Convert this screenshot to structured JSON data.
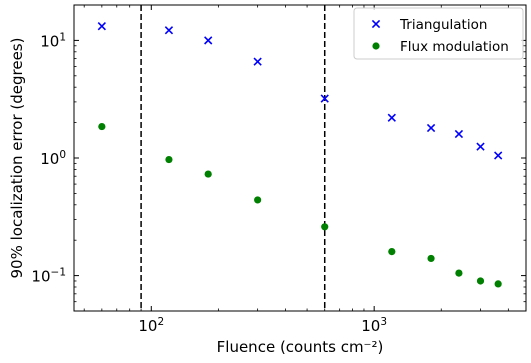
{
  "chart_data": {
    "type": "scatter",
    "xlabel": "Fluence (counts cm⁻²)",
    "ylabel": "90% localization error (degrees)",
    "x_scale": "log",
    "y_scale": "log",
    "xlim": [
      45,
      4800
    ],
    "ylim": [
      0.05,
      20
    ],
    "grid": false,
    "legend_position": "top-right",
    "x_major_ticks": [
      {
        "value": 100,
        "base": "10",
        "exp": "2"
      },
      {
        "value": 1000,
        "base": "10",
        "exp": "3"
      }
    ],
    "y_major_ticks": [
      {
        "value": 0.1,
        "base": "10",
        "exp": "−1"
      },
      {
        "value": 1,
        "base": "10",
        "exp": "0"
      },
      {
        "value": 10,
        "base": "10",
        "exp": "1"
      }
    ],
    "vertical_lines": [
      {
        "x": 90,
        "style": "dashed",
        "color": "#000000"
      },
      {
        "x": 600,
        "style": "dashed",
        "color": "#000000"
      }
    ],
    "series": [
      {
        "name": "Triangulation",
        "marker": "x",
        "color": "#0000ff",
        "points": [
          [
            60,
            13.2
          ],
          [
            120,
            12.2
          ],
          [
            180,
            10.0
          ],
          [
            300,
            6.6
          ],
          [
            600,
            3.2
          ],
          [
            1200,
            2.2
          ],
          [
            1800,
            1.8
          ],
          [
            2400,
            1.6
          ],
          [
            3000,
            1.25
          ],
          [
            3600,
            1.05
          ]
        ]
      },
      {
        "name": "Flux modulation",
        "marker": "circle",
        "color": "#008000",
        "points": [
          [
            60,
            1.85
          ],
          [
            120,
            0.97
          ],
          [
            180,
            0.73
          ],
          [
            300,
            0.44
          ],
          [
            600,
            0.26
          ],
          [
            1200,
            0.16
          ],
          [
            1800,
            0.14
          ],
          [
            2400,
            0.105
          ],
          [
            3000,
            0.09
          ],
          [
            3600,
            0.085
          ]
        ]
      }
    ]
  }
}
